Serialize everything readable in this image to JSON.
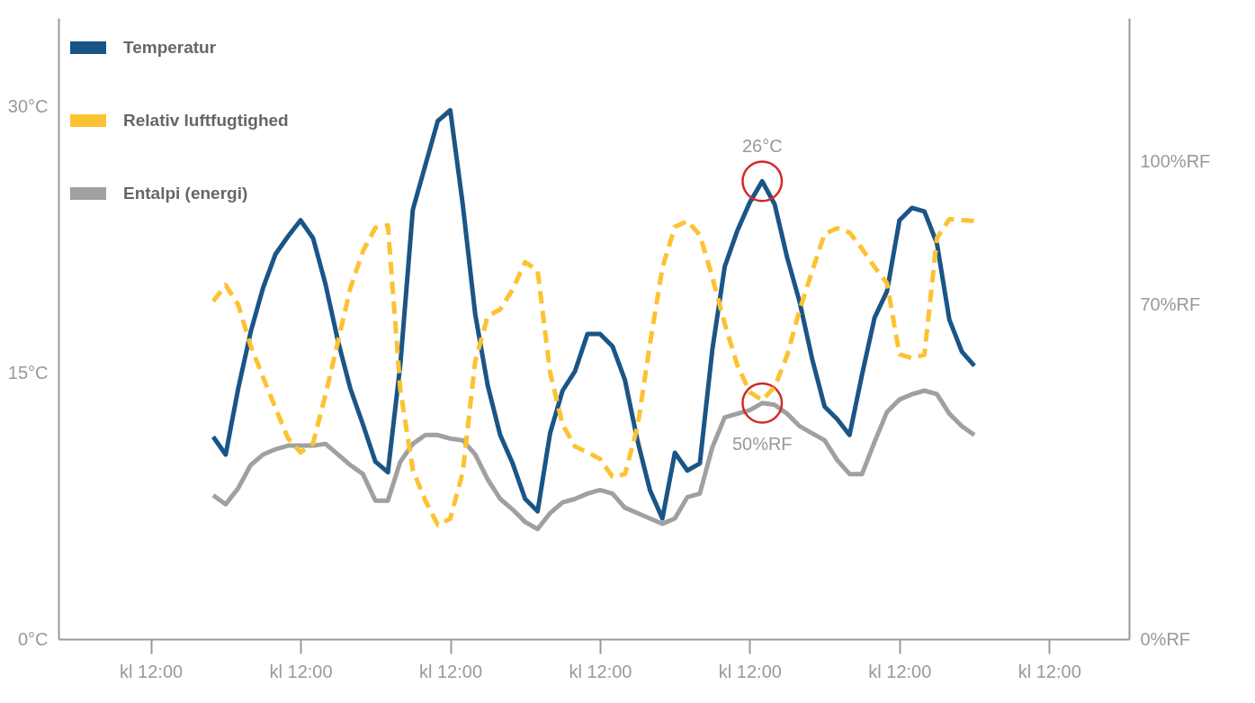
{
  "chart_data": {
    "type": "line",
    "categories": [
      null,
      null,
      null,
      null,
      null,
      null,
      null,
      "kl 12:00",
      null,
      null,
      null,
      null,
      null,
      null,
      null,
      null,
      null,
      null,
      null,
      "kl 12:00",
      null,
      null,
      null,
      null,
      null,
      null,
      null,
      null,
      null,
      null,
      null,
      "kl 12:00",
      null,
      null,
      null,
      null,
      null,
      null,
      null,
      null,
      null,
      null,
      null,
      "kl 12:00",
      null,
      null,
      null,
      null,
      null,
      null,
      null,
      null,
      null,
      null,
      null,
      "kl 12:00",
      null,
      null,
      null,
      null,
      null,
      null,
      null,
      null,
      null,
      null,
      null,
      "kl 12:00",
      null,
      null,
      null,
      null,
      null,
      null,
      null,
      null,
      null,
      null,
      null,
      "kl 12:00",
      null,
      null,
      null,
      null,
      null,
      null
    ],
    "ylim": [
      0,
      35
    ],
    "yticks": [
      {
        "value": 0,
        "label": "0°C"
      },
      {
        "value": 15,
        "label": "15°C"
      },
      {
        "value": 30,
        "label": "30°C"
      }
    ],
    "y2lim": [
      0,
      130
    ],
    "y2ticks": [
      {
        "value": 0,
        "label": "0%RF"
      },
      {
        "value": 70,
        "label": "70%RF"
      },
      {
        "value": 100,
        "label": "100%RF"
      }
    ],
    "legend": "top left",
    "grid": false,
    "series": [
      {
        "name": "Temperatur",
        "color": "#1a5587",
        "line_style": "solid",
        "values": [
          null,
          null,
          null,
          null,
          null,
          null,
          null,
          null,
          null,
          null,
          null,
          null,
          11.4,
          10.4,
          14.1,
          17.3,
          19.8,
          21.7,
          22.7,
          23.6,
          22.6,
          20.0,
          16.8,
          14.1,
          12.1,
          10.0,
          9.4,
          15.5,
          24.2,
          26.7,
          29.2,
          29.8,
          24.5,
          18.3,
          14.3,
          11.5,
          9.9,
          7.9,
          7.2,
          11.6,
          14.0,
          15.1,
          17.2,
          17.2,
          16.5,
          14.6,
          11.2,
          8.4,
          6.8,
          10.5,
          9.5,
          9.9,
          16.3,
          21.0,
          23.0,
          24.6,
          25.8,
          24.5,
          21.5,
          19.0,
          15.8,
          13.1,
          12.4,
          11.5,
          14.9,
          18.1,
          19.6,
          23.6,
          24.3,
          24.1,
          22.3,
          18.0,
          16.2,
          15.4,
          null,
          null,
          null,
          null,
          null,
          null,
          null,
          null,
          null,
          null,
          null,
          null
        ]
      },
      {
        "name": "Relativ luftfugtighed",
        "color": "#fdc232",
        "line_style": "dashed",
        "axis": "y2",
        "values": [
          null,
          null,
          null,
          null,
          null,
          null,
          null,
          null,
          null,
          null,
          null,
          null,
          70.7,
          74.1,
          70.0,
          61.4,
          54.8,
          48.3,
          42.0,
          39.1,
          41.0,
          51.1,
          62.3,
          73.5,
          81.2,
          86.1,
          86.6,
          52.2,
          35.4,
          29.0,
          23.9,
          25.2,
          34.9,
          58.2,
          67.6,
          69.0,
          73.2,
          78.9,
          77.2,
          55.8,
          44.9,
          40.3,
          39.1,
          37.7,
          34.0,
          34.5,
          44.4,
          61.7,
          77.7,
          86.3,
          87.5,
          84.6,
          75.8,
          66.0,
          57.4,
          51.7,
          50.0,
          52.8,
          59.4,
          68.9,
          77.0,
          84.8,
          86.0,
          85.1,
          81.7,
          77.9,
          74.5,
          59.6,
          58.8,
          59.5,
          83.9,
          87.9,
          87.7,
          87.5,
          null,
          null,
          null,
          null,
          null,
          null,
          null,
          null,
          null,
          null,
          null,
          null
        ]
      },
      {
        "name": "Entalpi (energi)",
        "color": "#a0a0a0",
        "line_style": "solid",
        "values": [
          null,
          null,
          null,
          null,
          null,
          null,
          null,
          null,
          null,
          null,
          null,
          null,
          8.1,
          7.6,
          8.5,
          9.8,
          10.4,
          10.7,
          10.9,
          10.9,
          10.9,
          11.0,
          10.4,
          9.8,
          9.3,
          7.8,
          7.8,
          10.0,
          11.0,
          11.5,
          11.5,
          11.3,
          11.2,
          10.4,
          9.0,
          7.9,
          7.3,
          6.6,
          6.2,
          7.1,
          7.7,
          7.9,
          8.2,
          8.4,
          8.2,
          7.4,
          7.1,
          6.8,
          6.5,
          6.8,
          8.0,
          8.2,
          10.8,
          12.5,
          12.7,
          12.9,
          13.3,
          13.2,
          12.7,
          12.0,
          11.6,
          11.2,
          10.1,
          9.3,
          9.3,
          11.1,
          12.8,
          13.5,
          13.8,
          14.0,
          13.8,
          12.7,
          12.0,
          11.5,
          null,
          null,
          null,
          null,
          null,
          null,
          null,
          null,
          null,
          null,
          null,
          null
        ]
      }
    ],
    "annotations": [
      {
        "text": "26°C",
        "y": 25.8
      },
      {
        "text": "50%RF",
        "y": 13.3
      }
    ]
  }
}
